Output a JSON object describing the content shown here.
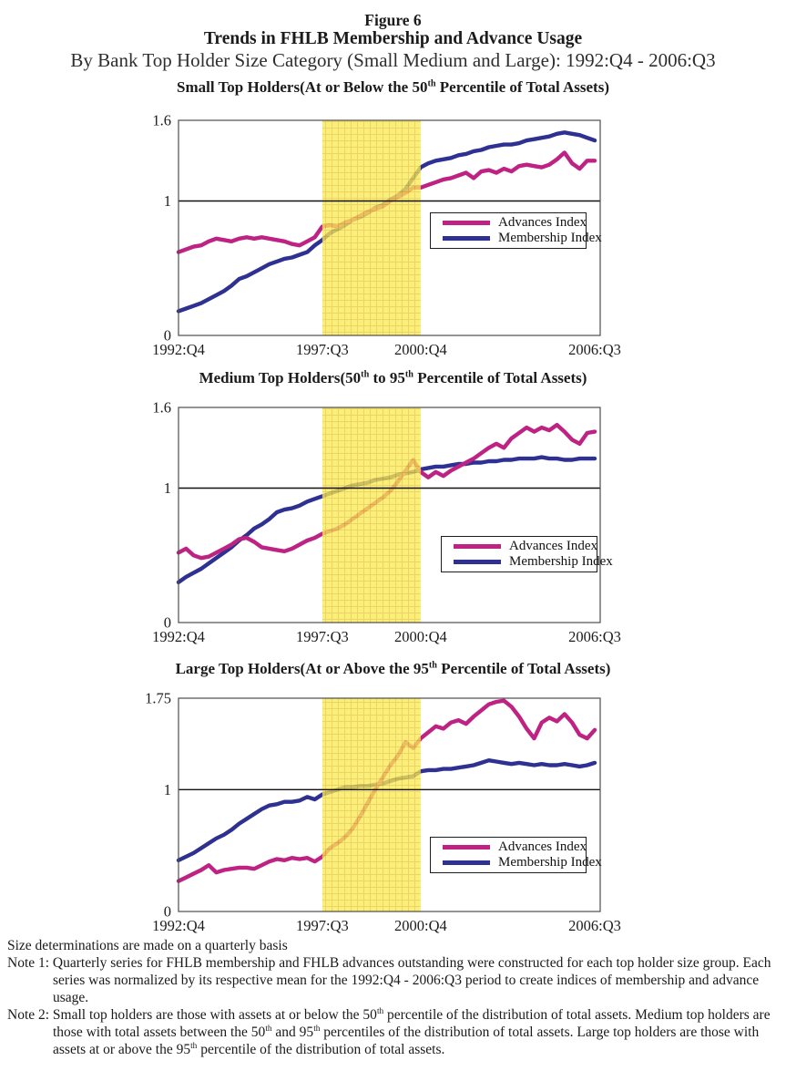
{
  "header": {
    "figure_label": "Figure 6",
    "title": "Trends in FHLB Membership and Advance Usage",
    "subtitle": "By Bank Top Holder Size Category (Small Medium and Large): 1992:Q4 - 2006:Q3"
  },
  "footnotes": {
    "size_note": "Size determinations are made on a quarterly basis",
    "note1": "Note 1: Quarterly series for FHLB membership and FHLB advances outstanding were constructed for each top holder size group.  Each series was normalized by its respective mean for the 1992:Q4 - 2006:Q3 period to create indices of membership and advance usage.",
    "note2_segments": [
      "Note 2: Small top holders are those with assets at or below the 50",
      "th",
      " percentile of the distribution of total assets. Medium top holders are those with total assets between the 50",
      "th",
      " and 95",
      "th",
      " percentiles of the distribution of total assets. Large top holders are those with assets at or above the 95",
      "th",
      " percentile of the distribution of total assets."
    ]
  },
  "colors": {
    "advances": "#BE2383",
    "membership": "#2E3192",
    "band_fill": "#FAEA55",
    "band_grid": "#E6C93C",
    "reference_line": "#111111"
  },
  "chart_data": [
    {
      "type": "line",
      "title_segments": {
        "pre": "Small Top Holders(At or Below the 50",
        "sup": "th",
        "post": " Percentile of Total Assets)"
      },
      "ylim": [
        0,
        1.6
      ],
      "reference_line": 1,
      "n_points": 56,
      "x_ticks": [
        {
          "index": 0,
          "label": "1992:Q4"
        },
        {
          "index": 19,
          "label": "1997:Q3"
        },
        {
          "index": 32,
          "label": "2000:Q4"
        },
        {
          "index": 55,
          "label": "2006:Q3"
        }
      ],
      "y_ticks": [
        {
          "value": 1.6,
          "label": "1.6"
        },
        {
          "value": 1,
          "label": "1"
        },
        {
          "value": 0,
          "label": "0"
        }
      ],
      "shaded_band": {
        "start_index": 19,
        "end_index": 32,
        "start_label": "1997:Q3",
        "end_label": "2000:Q4"
      },
      "series": [
        {
          "name": "Advances Index",
          "color": "#BE2383",
          "values": [
            0.62,
            0.64,
            0.66,
            0.67,
            0.7,
            0.72,
            0.71,
            0.7,
            0.72,
            0.73,
            0.72,
            0.73,
            0.72,
            0.71,
            0.7,
            0.68,
            0.67,
            0.7,
            0.73,
            0.81,
            0.82,
            0.81,
            0.84,
            0.86,
            0.89,
            0.92,
            0.94,
            0.96,
            1.0,
            1.03,
            1.06,
            1.1,
            1.1,
            1.12,
            1.14,
            1.16,
            1.17,
            1.19,
            1.21,
            1.17,
            1.22,
            1.23,
            1.21,
            1.24,
            1.22,
            1.26,
            1.27,
            1.26,
            1.25,
            1.27,
            1.31,
            1.36,
            1.28,
            1.24,
            1.3,
            1.3
          ]
        },
        {
          "name": "Membership Index",
          "color": "#2E3192",
          "values": [
            0.18,
            0.2,
            0.22,
            0.24,
            0.27,
            0.3,
            0.33,
            0.37,
            0.42,
            0.44,
            0.47,
            0.5,
            0.53,
            0.55,
            0.57,
            0.58,
            0.6,
            0.62,
            0.67,
            0.71,
            0.76,
            0.79,
            0.82,
            0.86,
            0.88,
            0.91,
            0.95,
            0.97,
            1.01,
            1.04,
            1.09,
            1.17,
            1.25,
            1.28,
            1.3,
            1.31,
            1.32,
            1.34,
            1.35,
            1.37,
            1.38,
            1.4,
            1.41,
            1.42,
            1.42,
            1.43,
            1.45,
            1.46,
            1.47,
            1.48,
            1.5,
            1.51,
            1.5,
            1.49,
            1.47,
            1.45
          ]
        }
      ]
    },
    {
      "type": "line",
      "title_segments": {
        "pre": "Medium Top Holders(50",
        "sup1": "th",
        "mid": " to 95",
        "sup2": "th",
        "post": " Percentile of Total Assets)"
      },
      "ylim": [
        0,
        1.6
      ],
      "reference_line": 1,
      "n_points": 56,
      "x_ticks": [
        {
          "index": 0,
          "label": "1992:Q4"
        },
        {
          "index": 19,
          "label": "1997:Q3"
        },
        {
          "index": 32,
          "label": "2000:Q4"
        },
        {
          "index": 55,
          "label": "2006:Q3"
        }
      ],
      "y_ticks": [
        {
          "value": 1.6,
          "label": "1.6"
        },
        {
          "value": 1,
          "label": "1"
        },
        {
          "value": 0,
          "label": "0"
        }
      ],
      "shaded_band": {
        "start_index": 19,
        "end_index": 32,
        "start_label": "1997:Q3",
        "end_label": "2000:Q4"
      },
      "series": [
        {
          "name": "Advances Index",
          "color": "#BE2383",
          "values": [
            0.52,
            0.55,
            0.5,
            0.48,
            0.49,
            0.52,
            0.55,
            0.58,
            0.62,
            0.63,
            0.6,
            0.56,
            0.55,
            0.54,
            0.53,
            0.55,
            0.58,
            0.61,
            0.63,
            0.66,
            0.68,
            0.7,
            0.73,
            0.77,
            0.81,
            0.85,
            0.89,
            0.93,
            0.98,
            1.05,
            1.13,
            1.21,
            1.12,
            1.08,
            1.12,
            1.09,
            1.13,
            1.16,
            1.19,
            1.22,
            1.26,
            1.3,
            1.33,
            1.3,
            1.37,
            1.41,
            1.45,
            1.42,
            1.45,
            1.43,
            1.47,
            1.42,
            1.36,
            1.33,
            1.41,
            1.42
          ]
        },
        {
          "name": "Membership Index",
          "color": "#2E3192",
          "values": [
            0.3,
            0.34,
            0.37,
            0.4,
            0.44,
            0.48,
            0.52,
            0.56,
            0.61,
            0.65,
            0.7,
            0.73,
            0.77,
            0.82,
            0.84,
            0.85,
            0.87,
            0.9,
            0.92,
            0.94,
            0.96,
            0.98,
            1.0,
            1.02,
            1.03,
            1.04,
            1.06,
            1.07,
            1.08,
            1.1,
            1.11,
            1.12,
            1.14,
            1.15,
            1.16,
            1.16,
            1.17,
            1.18,
            1.18,
            1.19,
            1.19,
            1.2,
            1.2,
            1.21,
            1.21,
            1.22,
            1.22,
            1.22,
            1.23,
            1.22,
            1.22,
            1.21,
            1.21,
            1.22,
            1.22,
            1.22
          ]
        }
      ]
    },
    {
      "type": "line",
      "title_segments": {
        "pre": "Large Top Holders(At or Above the 95",
        "sup": "th",
        "post": " Percentile of Total Assets)"
      },
      "ylim": [
        0,
        1.75
      ],
      "reference_line": 1,
      "n_points": 56,
      "x_ticks": [
        {
          "index": 0,
          "label": "1992:Q4"
        },
        {
          "index": 19,
          "label": "1997:Q3"
        },
        {
          "index": 32,
          "label": "2000:Q4"
        },
        {
          "index": 55,
          "label": "2006:Q3"
        }
      ],
      "y_ticks": [
        {
          "value": 1.75,
          "label": "1.75"
        },
        {
          "value": 1,
          "label": "1"
        },
        {
          "value": 0,
          "label": "0"
        }
      ],
      "shaded_band": {
        "start_index": 19,
        "end_index": 32,
        "start_label": "1997:Q3",
        "end_label": "2000:Q4"
      },
      "series": [
        {
          "name": "Advances Index",
          "color": "#BE2383",
          "values": [
            0.25,
            0.28,
            0.31,
            0.34,
            0.38,
            0.32,
            0.34,
            0.35,
            0.36,
            0.36,
            0.35,
            0.38,
            0.41,
            0.43,
            0.42,
            0.44,
            0.43,
            0.44,
            0.41,
            0.45,
            0.52,
            0.56,
            0.61,
            0.68,
            0.78,
            0.89,
            1.0,
            1.1,
            1.2,
            1.28,
            1.39,
            1.34,
            1.42,
            1.47,
            1.52,
            1.5,
            1.55,
            1.57,
            1.54,
            1.6,
            1.65,
            1.7,
            1.72,
            1.73,
            1.68,
            1.6,
            1.5,
            1.42,
            1.55,
            1.59,
            1.56,
            1.62,
            1.55,
            1.45,
            1.42,
            1.49
          ]
        },
        {
          "name": "Membership Index",
          "color": "#2E3192",
          "values": [
            0.42,
            0.45,
            0.48,
            0.52,
            0.56,
            0.6,
            0.63,
            0.67,
            0.72,
            0.76,
            0.8,
            0.84,
            0.87,
            0.88,
            0.9,
            0.9,
            0.91,
            0.94,
            0.92,
            0.96,
            0.98,
            1.0,
            1.02,
            1.02,
            1.03,
            1.03,
            1.04,
            1.05,
            1.07,
            1.09,
            1.1,
            1.11,
            1.15,
            1.16,
            1.16,
            1.17,
            1.17,
            1.18,
            1.19,
            1.2,
            1.22,
            1.24,
            1.23,
            1.22,
            1.21,
            1.22,
            1.21,
            1.2,
            1.21,
            1.2,
            1.2,
            1.21,
            1.2,
            1.19,
            1.2,
            1.22
          ]
        }
      ]
    }
  ]
}
